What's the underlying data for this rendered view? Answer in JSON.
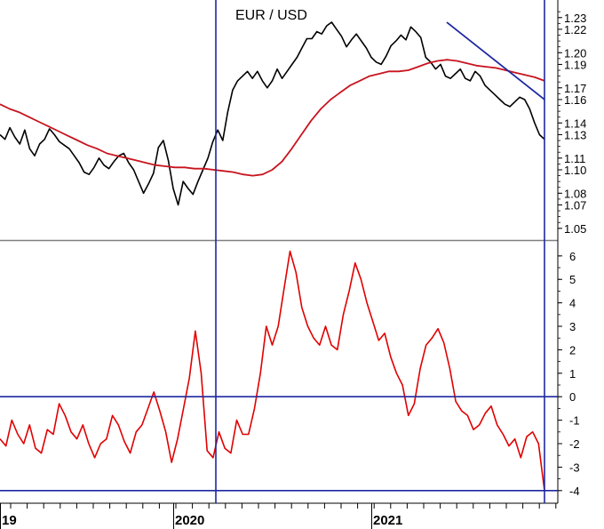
{
  "chart_data": [
    {
      "type": "line",
      "title": "EUR / USD",
      "ylim": [
        1.04,
        1.245
      ],
      "y_ticks": [
        "1.05",
        "1.07",
        "1.08",
        "1.10",
        "1.11",
        "1.13",
        "1.14",
        "1.16",
        "1.17",
        "1.19",
        "1.20",
        "1.22",
        "1.23"
      ],
      "series": [
        {
          "color": "#000000",
          "values": [
            1.13,
            1.126,
            1.136,
            1.128,
            1.122,
            1.134,
            1.118,
            1.112,
            1.122,
            1.126,
            1.135,
            1.13,
            1.124,
            1.121,
            1.118,
            1.112,
            1.106,
            1.098,
            1.096,
            1.102,
            1.11,
            1.104,
            1.101,
            1.107,
            1.112,
            1.114,
            1.106,
            1.1,
            1.09,
            1.08,
            1.088,
            1.097,
            1.119,
            1.125,
            1.108,
            1.084,
            1.07,
            1.09,
            1.084,
            1.079,
            1.09,
            1.1,
            1.11,
            1.124,
            1.134,
            1.125,
            1.149,
            1.168,
            1.176,
            1.18,
            1.184,
            1.178,
            1.184,
            1.176,
            1.17,
            1.176,
            1.186,
            1.178,
            1.184,
            1.19,
            1.196,
            1.204,
            1.212,
            1.212,
            1.218,
            1.216,
            1.223,
            1.226,
            1.22,
            1.214,
            1.205,
            1.211,
            1.216,
            1.21,
            1.204,
            1.196,
            1.192,
            1.19,
            1.197,
            1.206,
            1.21,
            1.215,
            1.211,
            1.222,
            1.218,
            1.213,
            1.196,
            1.192,
            1.186,
            1.19,
            1.18,
            1.178,
            1.182,
            1.186,
            1.178,
            1.176,
            1.184,
            1.18,
            1.172,
            1.168,
            1.164,
            1.16,
            1.156,
            1.154,
            1.158,
            1.162,
            1.16,
            1.152,
            1.14,
            1.13,
            1.126
          ]
        },
        {
          "color": "#c8141e",
          "values": [
            1.156,
            1.152,
            1.149,
            1.145,
            1.141,
            1.137,
            1.133,
            1.129,
            1.125,
            1.121,
            1.118,
            1.114,
            1.112,
            1.11,
            1.108,
            1.106,
            1.104,
            1.103,
            1.102,
            1.102,
            1.101,
            1.101,
            1.1,
            1.099,
            1.098,
            1.096,
            1.095,
            1.096,
            1.1,
            1.107,
            1.118,
            1.13,
            1.142,
            1.152,
            1.16,
            1.166,
            1.172,
            1.176,
            1.18,
            1.182,
            1.184,
            1.184,
            1.185,
            1.188,
            1.191,
            1.193,
            1.194,
            1.193,
            1.191,
            1.189,
            1.188,
            1.187,
            1.185,
            1.183,
            1.181,
            1.179,
            1.176
          ]
        }
      ],
      "trendline": {
        "color": "#1e28a0",
        "start": 1.226,
        "end": 1.16
      }
    },
    {
      "type": "line",
      "ylim": [
        -4.5,
        6.6
      ],
      "y_ticks": [
        "6",
        "5",
        "4",
        "3",
        "2",
        "1",
        "0",
        "-1",
        "-2",
        "-3",
        "-4"
      ],
      "reference_lines": [
        0,
        -4
      ],
      "series": [
        {
          "color": "#e00000",
          "values": [
            -1.8,
            -2.1,
            -1.0,
            -1.6,
            -2.0,
            -1.2,
            -2.2,
            -2.4,
            -1.4,
            -1.6,
            -0.3,
            -0.8,
            -1.5,
            -1.8,
            -1.2,
            -2.0,
            -2.6,
            -2.0,
            -1.8,
            -0.8,
            -1.2,
            -1.9,
            -2.4,
            -1.5,
            -1.2,
            -0.5,
            0.2,
            -0.6,
            -1.5,
            -2.8,
            -1.8,
            -0.5,
            0.8,
            2.8,
            1.0,
            -2.3,
            -2.6,
            -1.5,
            -2.2,
            -2.4,
            -1.0,
            -1.6,
            -1.6,
            -0.5,
            1.0,
            3.0,
            2.2,
            3.0,
            4.6,
            6.2,
            5.3,
            3.8,
            3.0,
            2.5,
            2.2,
            3.0,
            2.2,
            2.0,
            3.5,
            4.5,
            5.7,
            5.0,
            4.0,
            3.2,
            2.4,
            2.7,
            1.7,
            1.0,
            0.5,
            -0.8,
            -0.3,
            1.2,
            2.2,
            2.5,
            2.9,
            2.3,
            1.2,
            -0.2,
            -0.6,
            -0.8,
            -1.4,
            -1.2,
            -0.7,
            -0.4,
            -1.2,
            -1.6,
            -2.1,
            -1.8,
            -2.6,
            -1.7,
            -1.5,
            -2.0,
            -4.0
          ]
        }
      ]
    }
  ],
  "x_axis": {
    "labels": [
      "19",
      "2020",
      "2021"
    ]
  }
}
